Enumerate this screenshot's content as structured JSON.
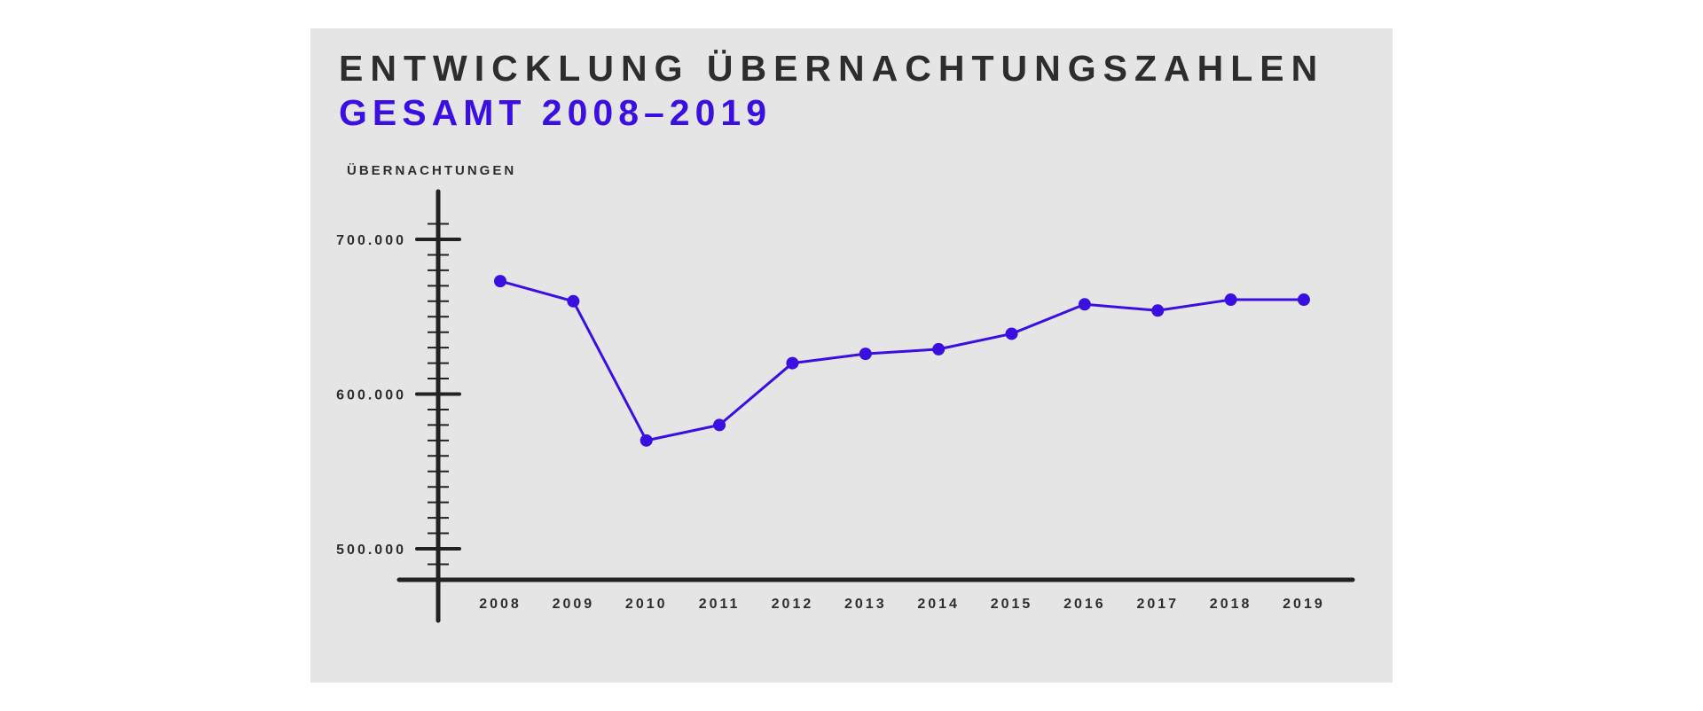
{
  "header": {
    "title": "ENTWICKLUNG ÜBERNACHTUNGSZAHLEN",
    "subtitle": "GESAMT 2008–2019"
  },
  "colors": {
    "panel_background": "#e5e5e5",
    "axis": "#222222",
    "series": "#3a0fe0",
    "title_text": "#2d2d2d",
    "subtitle_text": "#3a0fe0"
  },
  "chart_data": {
    "type": "line",
    "title": "ENTWICKLUNG ÜBERNACHTUNGSZAHLEN",
    "subtitle": "GESAMT 2008–2019",
    "ylabel": "ÜBERNACHTUNGEN",
    "xlabel": "",
    "categories": [
      "2008",
      "2009",
      "2010",
      "2011",
      "2012",
      "2013",
      "2014",
      "2015",
      "2016",
      "2017",
      "2018",
      "2019"
    ],
    "series": [
      {
        "values": [
          673000,
          660000,
          570000,
          580000,
          620000,
          626000,
          629000,
          639000,
          658000,
          654000,
          661000,
          661000
        ]
      }
    ],
    "ylim": [
      480000,
      730000
    ],
    "yticks": [
      500000,
      600000,
      700000
    ],
    "ytick_labels": [
      "500.000",
      "600.000",
      "700.000"
    ],
    "minor_tick_step": 10000,
    "grid": false,
    "legend": "none",
    "markers": true
  }
}
